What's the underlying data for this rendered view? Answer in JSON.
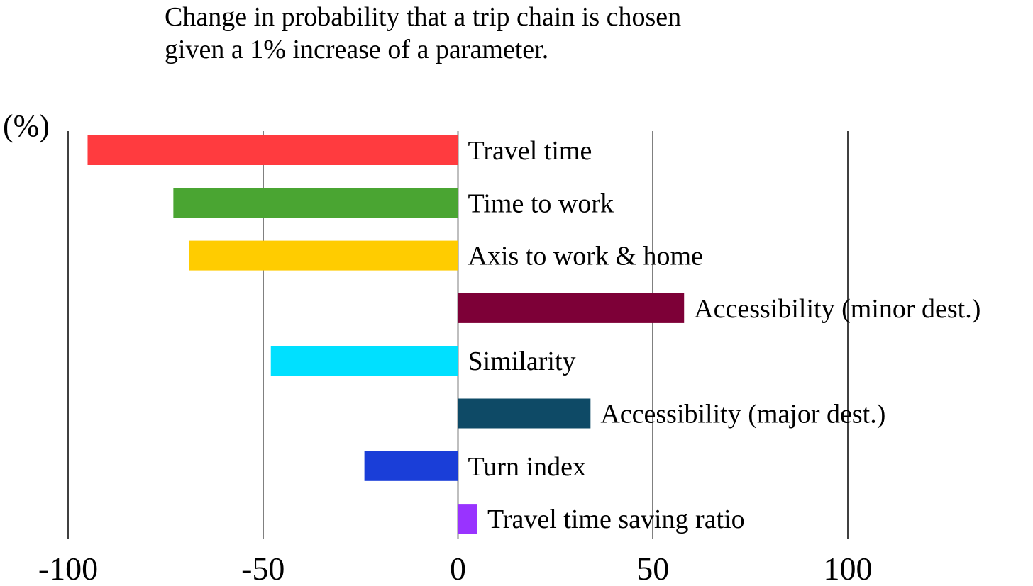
{
  "chart_data": {
    "type": "bar",
    "orientation": "horizontal",
    "title": "Change in probability that a trip chain is chosen",
    "subtitle": "given a 1% increase of a parameter.",
    "ylabel": "(%)",
    "xlim": [
      -100,
      100
    ],
    "grid": true,
    "x_ticks": [
      -100,
      -50,
      0,
      50,
      100
    ],
    "x_tick_labels": [
      "-100",
      "-50",
      "0",
      "50",
      "100"
    ],
    "categories": [
      "Travel time",
      "Time to work",
      "Axis to work & home",
      "Accessibility (minor dest.)",
      "Similarity",
      "Accessibility (major dest.)",
      "Turn index",
      "Travel time saving ratio"
    ],
    "values": [
      -95,
      -73,
      -69,
      58,
      -48,
      34,
      -24,
      5
    ],
    "colors": [
      "#ff3b3f",
      "#4aa532",
      "#ffcc00",
      "#7d0037",
      "#00e0ff",
      "#0e4a66",
      "#1a3ed8",
      "#9933ff"
    ]
  }
}
